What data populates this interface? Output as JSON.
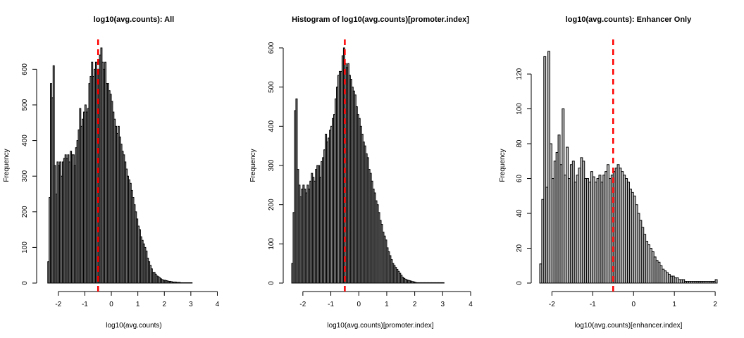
{
  "chart_data": [
    {
      "type": "bar",
      "title": "log10(avg.counts): All",
      "xlabel": "log10(avg.counts)",
      "ylabel": "Frequency",
      "xlim": [
        -2.5,
        4.2
      ],
      "ylim": [
        0,
        660
      ],
      "xticks": [
        -2,
        -1,
        0,
        1,
        2,
        3,
        4
      ],
      "yticks": [
        0,
        100,
        200,
        300,
        400,
        500,
        600
      ],
      "vline": -0.5,
      "bar_fill": "#888888",
      "bin_start": -2.4,
      "bin_width": 0.05,
      "values": [
        60,
        240,
        560,
        520,
        610,
        330,
        250,
        340,
        330,
        340,
        300,
        340,
        350,
        360,
        350,
        360,
        340,
        370,
        360,
        360,
        330,
        380,
        400,
        430,
        490,
        440,
        460,
        480,
        500,
        480,
        490,
        560,
        580,
        620,
        580,
        600,
        620,
        600,
        600,
        640,
        660,
        620,
        600,
        620,
        560,
        560,
        540,
        530,
        510,
        480,
        460,
        440,
        420,
        440,
        410,
        390,
        370,
        360,
        340,
        320,
        300,
        290,
        280,
        260,
        240,
        220,
        200,
        180,
        160,
        150,
        130,
        120,
        110,
        100,
        90,
        70,
        60,
        50,
        40,
        30,
        30,
        25,
        20,
        18,
        15,
        12,
        10,
        8,
        8,
        7,
        6,
        5,
        5,
        4,
        3,
        3,
        3,
        2,
        2,
        2,
        1,
        1,
        1,
        1,
        1,
        1,
        1,
        1,
        1,
        0
      ],
      "plot": {
        "x0": 64,
        "x1": 316,
        "y0": 68,
        "y1": 402
      }
    },
    {
      "type": "bar",
      "title": "Histogram of log10(avg.counts)[promoter.index]",
      "xlabel": "log10(avg.counts)[promoter.index]",
      "ylabel": "Frequency",
      "xlim": [
        -2.4,
        4.0
      ],
      "ylim": [
        0,
        600
      ],
      "xticks": [
        -2,
        -1,
        0,
        1,
        2,
        3,
        4
      ],
      "yticks": [
        0,
        100,
        200,
        300,
        400,
        500,
        600
      ],
      "vline": -0.5,
      "bar_fill": "#888888",
      "bin_start": -2.4,
      "bin_width": 0.05,
      "values": [
        50,
        180,
        440,
        470,
        290,
        250,
        220,
        240,
        250,
        240,
        230,
        250,
        240,
        260,
        280,
        270,
        260,
        290,
        300,
        300,
        270,
        310,
        320,
        340,
        380,
        360,
        370,
        390,
        400,
        420,
        430,
        470,
        500,
        530,
        540,
        540,
        580,
        600,
        560,
        550,
        560,
        530,
        520,
        500,
        490,
        480,
        450,
        430,
        420,
        400,
        380,
        360,
        350,
        330,
        320,
        290,
        280,
        260,
        240,
        230,
        210,
        200,
        180,
        160,
        150,
        130,
        120,
        110,
        90,
        80,
        70,
        60,
        50,
        45,
        40,
        35,
        30,
        25,
        20,
        15,
        12,
        10,
        8,
        7,
        6,
        5,
        4,
        3,
        2,
        1,
        1,
        1,
        1,
        1,
        1,
        1,
        1,
        1,
        1,
        1,
        1,
        1,
        1,
        1,
        1,
        1,
        1,
        1,
        1,
        0
      ],
      "plot": {
        "x0": 414,
        "x1": 668,
        "y0": 68,
        "y1": 402
      }
    },
    {
      "type": "bar",
      "title": "log10(avg.counts): Enhancer Only",
      "xlabel": "log10(avg.counts)[enhancer.index]",
      "ylabel": "Frequency",
      "xlim": [
        -2.3,
        2.05
      ],
      "ylim": [
        0,
        135
      ],
      "xticks": [
        -2,
        -1,
        0,
        1,
        2
      ],
      "yticks": [
        0,
        20,
        40,
        60,
        80,
        100,
        120
      ],
      "vline": -0.5,
      "bar_fill": "#bbbbbb",
      "bin_start": -2.3,
      "bin_width": 0.05,
      "values": [
        11,
        48,
        130,
        55,
        133,
        80,
        60,
        70,
        75,
        85,
        68,
        100,
        62,
        78,
        60,
        68,
        70,
        58,
        62,
        66,
        72,
        70,
        60,
        60,
        58,
        64,
        61,
        58,
        60,
        62,
        58,
        62,
        64,
        68,
        60,
        62,
        64,
        66,
        68,
        66,
        64,
        62,
        60,
        58,
        54,
        52,
        50,
        45,
        40,
        36,
        32,
        28,
        24,
        22,
        20,
        18,
        15,
        13,
        12,
        10,
        8,
        7,
        6,
        5,
        4,
        4,
        3,
        3,
        2,
        2,
        2,
        1,
        1,
        1,
        1,
        1,
        1,
        1,
        1,
        1,
        1,
        1,
        1,
        1,
        1,
        1,
        2,
        1
      ],
      "plot": {
        "x0": 766,
        "x1": 1018,
        "y0": 68,
        "y1": 402
      }
    }
  ]
}
